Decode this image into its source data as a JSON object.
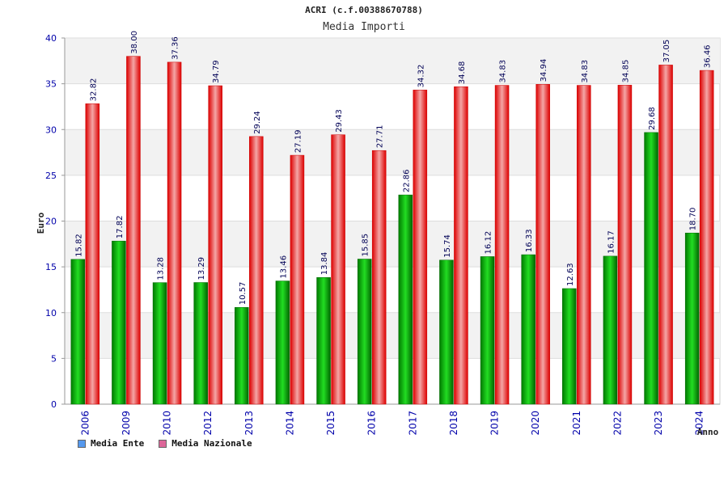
{
  "chart_data": {
    "type": "bar",
    "title": "ACRI (c.f.00388670788)",
    "subtitle": "Media Importi",
    "xlabel": "Anno",
    "ylabel": "Euro",
    "ylim": [
      0,
      40
    ],
    "yticks": [
      0,
      5,
      10,
      15,
      20,
      25,
      30,
      35,
      40
    ],
    "grid": true,
    "legend_position": "bottom-left",
    "categories": [
      "2006",
      "2009",
      "2010",
      "2012",
      "2013",
      "2014",
      "2015",
      "2016",
      "2017",
      "2018",
      "2019",
      "2020",
      "2021",
      "2022",
      "2023",
      "2024"
    ],
    "series": [
      {
        "name": "Media Ente",
        "color": "#00aa00",
        "legend_color": "#5599ee",
        "values": [
          15.82,
          17.82,
          13.28,
          13.29,
          10.57,
          13.46,
          13.84,
          15.85,
          22.86,
          15.74,
          16.12,
          16.33,
          12.63,
          16.17,
          29.68,
          18.7
        ],
        "labels": [
          "15.82",
          "17.82",
          "13.28",
          "13.29",
          "10.57",
          "13.46",
          "13.84",
          "15.85",
          "22.86",
          "15.74",
          "16.12",
          "16.33",
          "12.63",
          "16.17",
          "29.68",
          "18.70"
        ]
      },
      {
        "name": "Media Nazionale",
        "color": "#ee1111",
        "legend_color": "#dd6699",
        "values": [
          32.82,
          38.0,
          37.36,
          34.79,
          29.24,
          27.19,
          29.43,
          27.71,
          34.32,
          34.68,
          34.83,
          34.94,
          34.83,
          34.85,
          37.05,
          36.46
        ],
        "labels": [
          "32.82",
          "38.00",
          "37.36",
          "34.79",
          "29.24",
          "27.19",
          "29.43",
          "27.71",
          "34.32",
          "34.68",
          "34.83",
          "34.94",
          "34.83",
          "34.85",
          "37.05",
          "36.46"
        ]
      }
    ]
  }
}
